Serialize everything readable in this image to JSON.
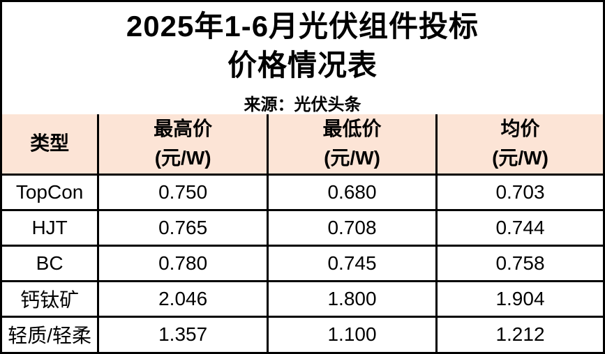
{
  "title": {
    "line1": "2025年1-6月光伏组件投标",
    "line2": "价格情况表"
  },
  "source": "来源：光伏头条",
  "colors": {
    "header_bg": "#FCE4D6",
    "border": "#000000",
    "background": "#FFFFFF",
    "text": "#000000"
  },
  "table": {
    "columns": [
      {
        "label": "类型",
        "unit": ""
      },
      {
        "label": "最高价",
        "unit": "(元/W)"
      },
      {
        "label": "最低价",
        "unit": "(元/W)"
      },
      {
        "label": "均价",
        "unit": "(元/W)"
      }
    ],
    "rows": [
      {
        "type": "TopCon",
        "max": "0.750",
        "min": "0.680",
        "avg": "0.703"
      },
      {
        "type": "HJT",
        "max": "0.765",
        "min": "0.708",
        "avg": "0.744"
      },
      {
        "type": "BC",
        "max": "0.780",
        "min": "0.745",
        "avg": "0.758"
      },
      {
        "type": "钙钛矿",
        "max": "2.046",
        "min": "1.800",
        "avg": "1.904"
      },
      {
        "type": "轻质/轻柔",
        "max": "1.357",
        "min": "1.100",
        "avg": "1.212"
      }
    ]
  },
  "chart_data": {
    "type": "table",
    "title": "2025年1-6月光伏组件投标价格情况表",
    "subtitle": "来源：光伏头条",
    "columns": [
      "类型",
      "最高价 (元/W)",
      "最低价 (元/W)",
      "均价 (元/W)"
    ],
    "rows": [
      [
        "TopCon",
        0.75,
        0.68,
        0.703
      ],
      [
        "HJT",
        0.765,
        0.708,
        0.744
      ],
      [
        "BC",
        0.78,
        0.745,
        0.758
      ],
      [
        "钙钛矿",
        2.046,
        1.8,
        1.904
      ],
      [
        "轻质/轻柔",
        1.357,
        1.1,
        1.212
      ]
    ],
    "layout": {
      "header_fill": "#FCE4D6",
      "grid": true,
      "unit": "元/W"
    }
  }
}
